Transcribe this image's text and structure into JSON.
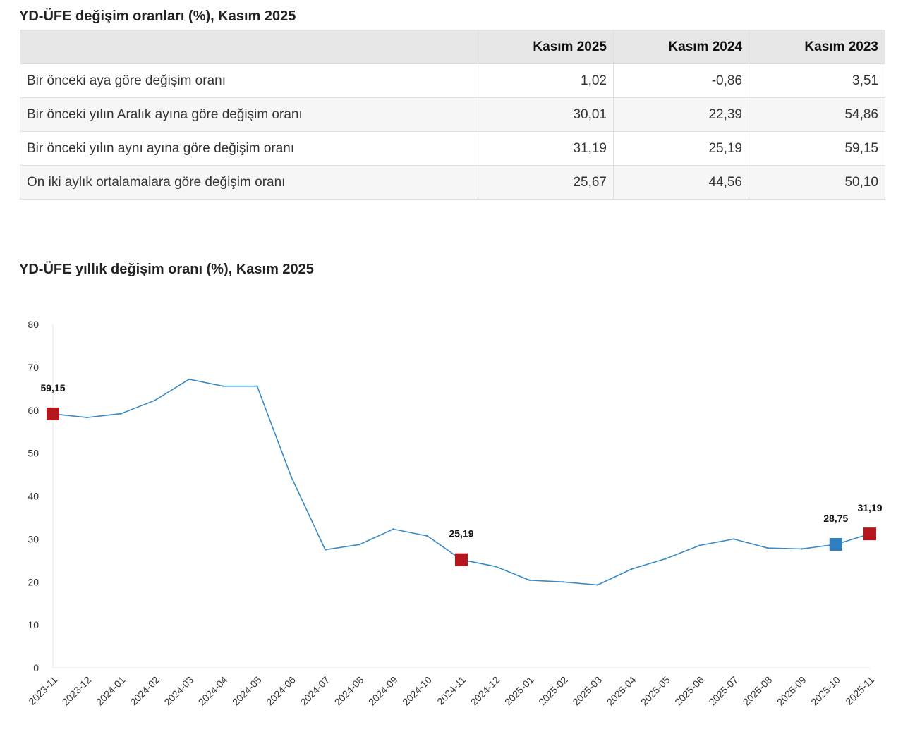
{
  "table": {
    "title": "YD-ÜFE değişim oranları (%), Kasım 2025",
    "headers": [
      "",
      "Kasım 2025",
      "Kasım 2024",
      "Kasım 2023"
    ],
    "rows": [
      {
        "label": "Bir önceki aya göre değişim oranı",
        "values": [
          "1,02",
          "-0,86",
          "3,51"
        ]
      },
      {
        "label": "Bir önceki yılın Aralık ayına göre değişim oranı",
        "values": [
          "30,01",
          "22,39",
          "54,86"
        ]
      },
      {
        "label": "Bir önceki yılın aynı ayına göre değişim oranı",
        "values": [
          "31,19",
          "25,19",
          "59,15"
        ]
      },
      {
        "label": "On iki aylık ortalamalara göre değişim oranı",
        "values": [
          "25,67",
          "44,56",
          "50,10"
        ]
      }
    ]
  },
  "chart_data": {
    "type": "line",
    "title": "YD-ÜFE yıllık değişim oranı (%), Kasım 2025",
    "xlabel": "",
    "ylabel": "",
    "ylim": [
      0,
      80
    ],
    "yticks": [
      0,
      10,
      20,
      30,
      40,
      50,
      60,
      70,
      80
    ],
    "grid": false,
    "line_color": "#3a8ac6",
    "categories": [
      "2023-11",
      "2023-12",
      "2024-01",
      "2024-02",
      "2024-03",
      "2024-04",
      "2024-05",
      "2024-06",
      "2024-07",
      "2024-08",
      "2024-09",
      "2024-10",
      "2024-11",
      "2024-12",
      "2025-01",
      "2025-02",
      "2025-03",
      "2025-04",
      "2025-05",
      "2025-06",
      "2025-07",
      "2025-08",
      "2025-09",
      "2025-10",
      "2025-11"
    ],
    "series": [
      {
        "values": [
          59.15,
          58.3,
          59.2,
          62.3,
          67.2,
          65.6,
          65.6,
          44.5,
          27.5,
          28.7,
          32.3,
          30.7,
          25.19,
          23.6,
          20.4,
          20.0,
          19.3,
          23.0,
          25.4,
          28.5,
          30.0,
          27.9,
          27.7,
          28.75,
          31.19
        ]
      }
    ],
    "highlights": [
      {
        "x": "2023-11",
        "value": 59.15,
        "label": "59,15",
        "color": "#b5161e"
      },
      {
        "x": "2024-11",
        "value": 25.19,
        "label": "25,19",
        "color": "#b5161e"
      },
      {
        "x": "2025-10",
        "value": 28.75,
        "label": "28,75",
        "color": "#2f7ebf"
      },
      {
        "x": "2025-11",
        "value": 31.19,
        "label": "31,19",
        "color": "#b5161e"
      }
    ]
  }
}
